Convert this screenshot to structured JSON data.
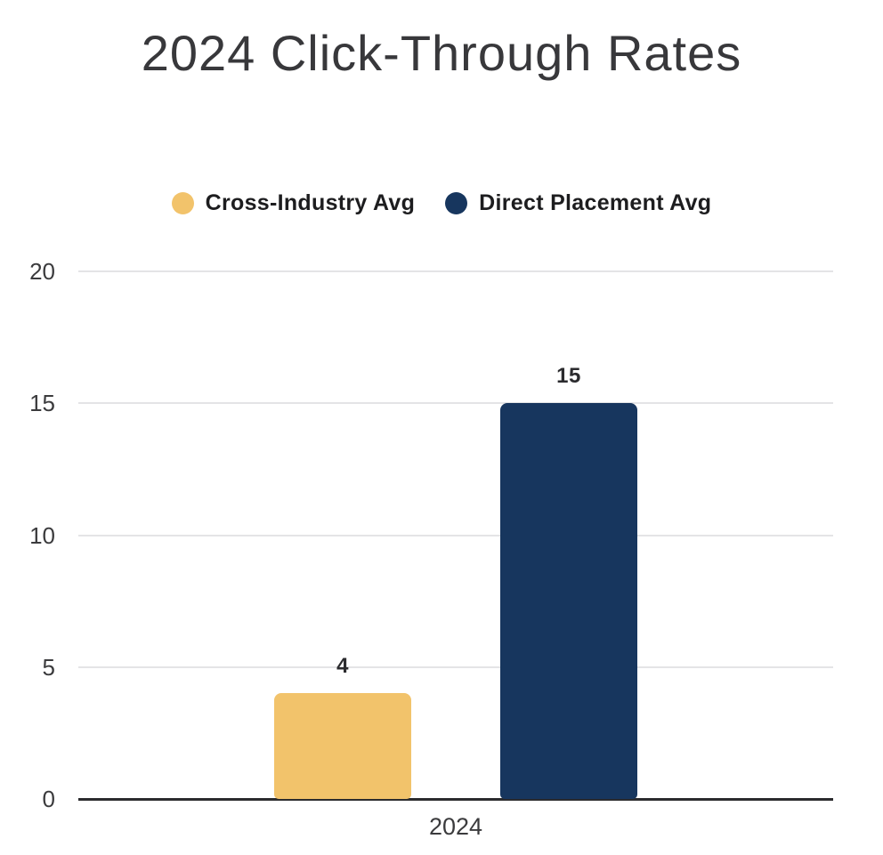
{
  "chart_data": {
    "type": "bar",
    "title": "2024 Click-Through Rates",
    "categories": [
      "2024"
    ],
    "series": [
      {
        "name": "Cross-Industry Avg",
        "values": [
          4
        ],
        "color": "#F2C36B"
      },
      {
        "name": "Direct Placement Avg",
        "values": [
          15
        ],
        "color": "#17365E"
      }
    ],
    "xlabel": "",
    "ylabel": "",
    "ylim": [
      0,
      20
    ],
    "yticks": [
      0,
      5,
      10,
      15,
      20
    ],
    "grid": true,
    "legend_position": "top",
    "value_labels_shown": true
  },
  "colors": {
    "background": "#ffffff",
    "title_text": "#38383b",
    "legend_text": "#1d1d1f",
    "tick_text": "#3b3b3d",
    "value_label_text": "#2b2b2e",
    "gridline": "#e4e4e6",
    "axis_line": "#2b2b2e",
    "series_cross_industry": "#F2C36B",
    "series_direct_placement": "#17365E"
  }
}
